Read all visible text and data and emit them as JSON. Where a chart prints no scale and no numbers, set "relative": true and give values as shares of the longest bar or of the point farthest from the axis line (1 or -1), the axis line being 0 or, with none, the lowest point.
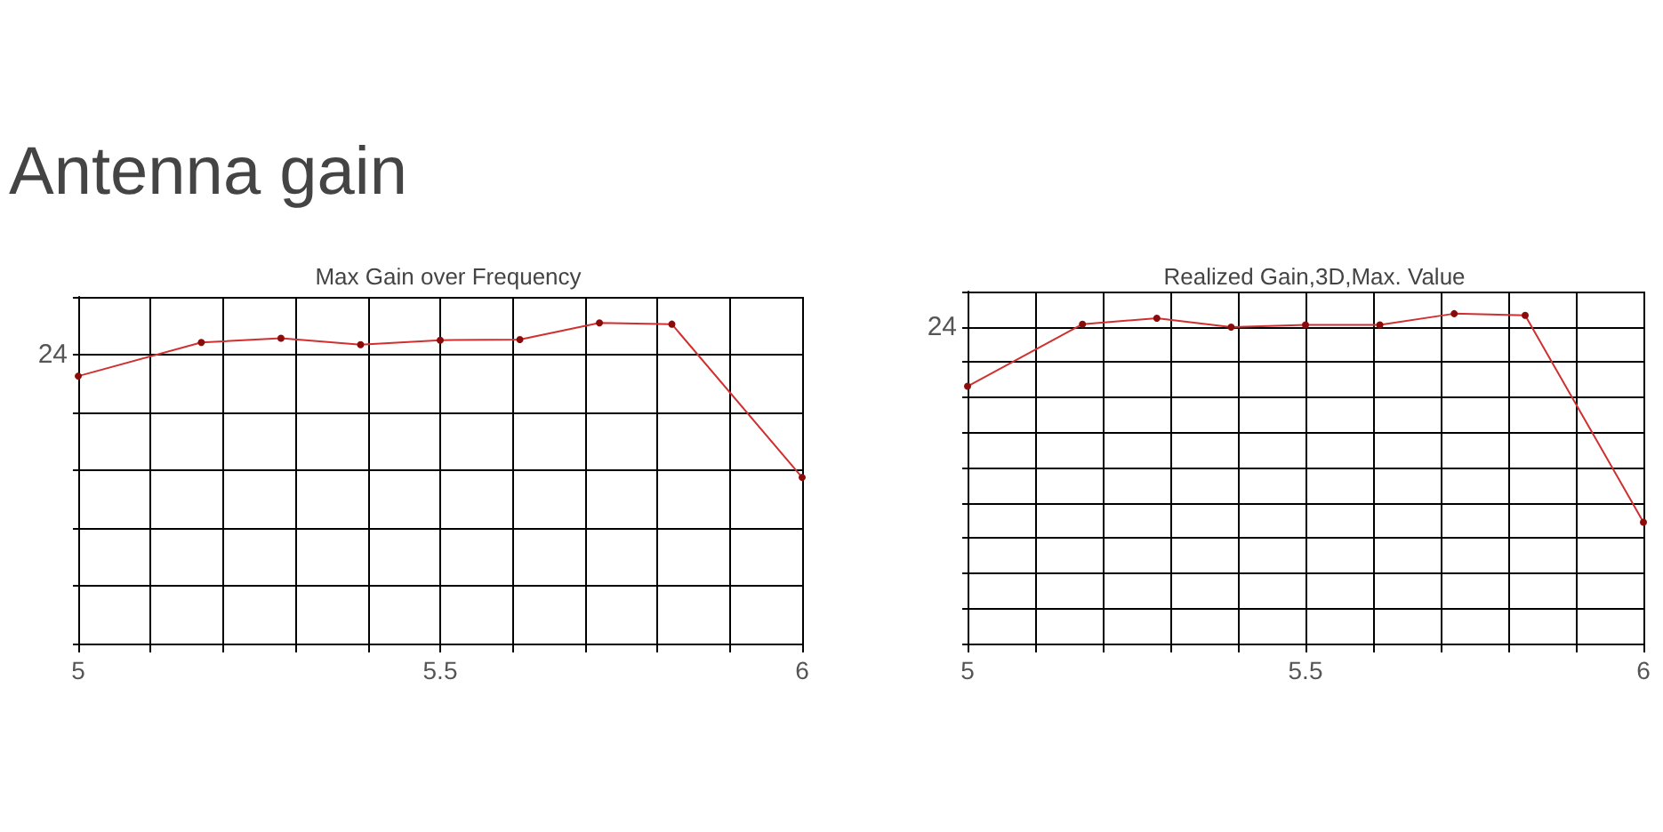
{
  "chart_data": [
    {
      "type": "line",
      "title": "Max Gain over Frequency",
      "relative": true,
      "grid": true,
      "marker": "circle",
      "line_style": "solid",
      "x": [
        5,
        5.17,
        5.28,
        5.39,
        5.5,
        5.61,
        5.72,
        5.82,
        6
      ],
      "series": [
        {
          "color": "#d03030",
          "values": [
            0.834,
            0.939,
            0.952,
            0.932,
            0.946,
            0.948,
            1,
            0.996,
            0.518
          ]
        }
      ],
      "xlim": [
        5,
        6
      ],
      "xticks": [
        5,
        {
          "value": 5.1,
          "label": null
        },
        {
          "value": 5.2,
          "label": null
        },
        {
          "value": 5.3,
          "label": null
        },
        {
          "value": 5.4,
          "label": null
        },
        5.5,
        {
          "value": 5.6,
          "label": null
        },
        {
          "value": 5.7,
          "label": null
        },
        {
          "value": 5.8,
          "label": null
        },
        {
          "value": 5.9,
          "label": null
        },
        6
      ],
      "annotations": [
        "Antenna gain",
        "24"
      ]
    },
    {
      "type": "line",
      "title": "Realized Gain,3D,Max. Value",
      "relative": true,
      "grid": true,
      "marker": "circle",
      "line_style": "solid",
      "x": [
        5,
        5.17,
        5.28,
        5.39,
        5.5,
        5.61,
        5.72,
        5.825,
        6
      ],
      "series": [
        {
          "color": "#d03030",
          "values": [
            0.78,
            0.968,
            0.986,
            0.959,
            0.966,
            0.966,
            1,
            0.995,
            0.368
          ]
        }
      ],
      "xlim": [
        5,
        6
      ],
      "xticks": [
        5,
        {
          "value": 5.1,
          "label": null
        },
        {
          "value": 5.2,
          "label": null
        },
        {
          "value": 5.3,
          "label": null
        },
        {
          "value": 5.4,
          "label": null
        },
        5.5,
        {
          "value": 5.6,
          "label": null
        },
        {
          "value": 5.7,
          "label": null
        },
        {
          "value": 5.8,
          "label": null
        },
        {
          "value": 5.9,
          "label": null
        },
        6
      ],
      "annotations": [
        "24"
      ]
    }
  ]
}
